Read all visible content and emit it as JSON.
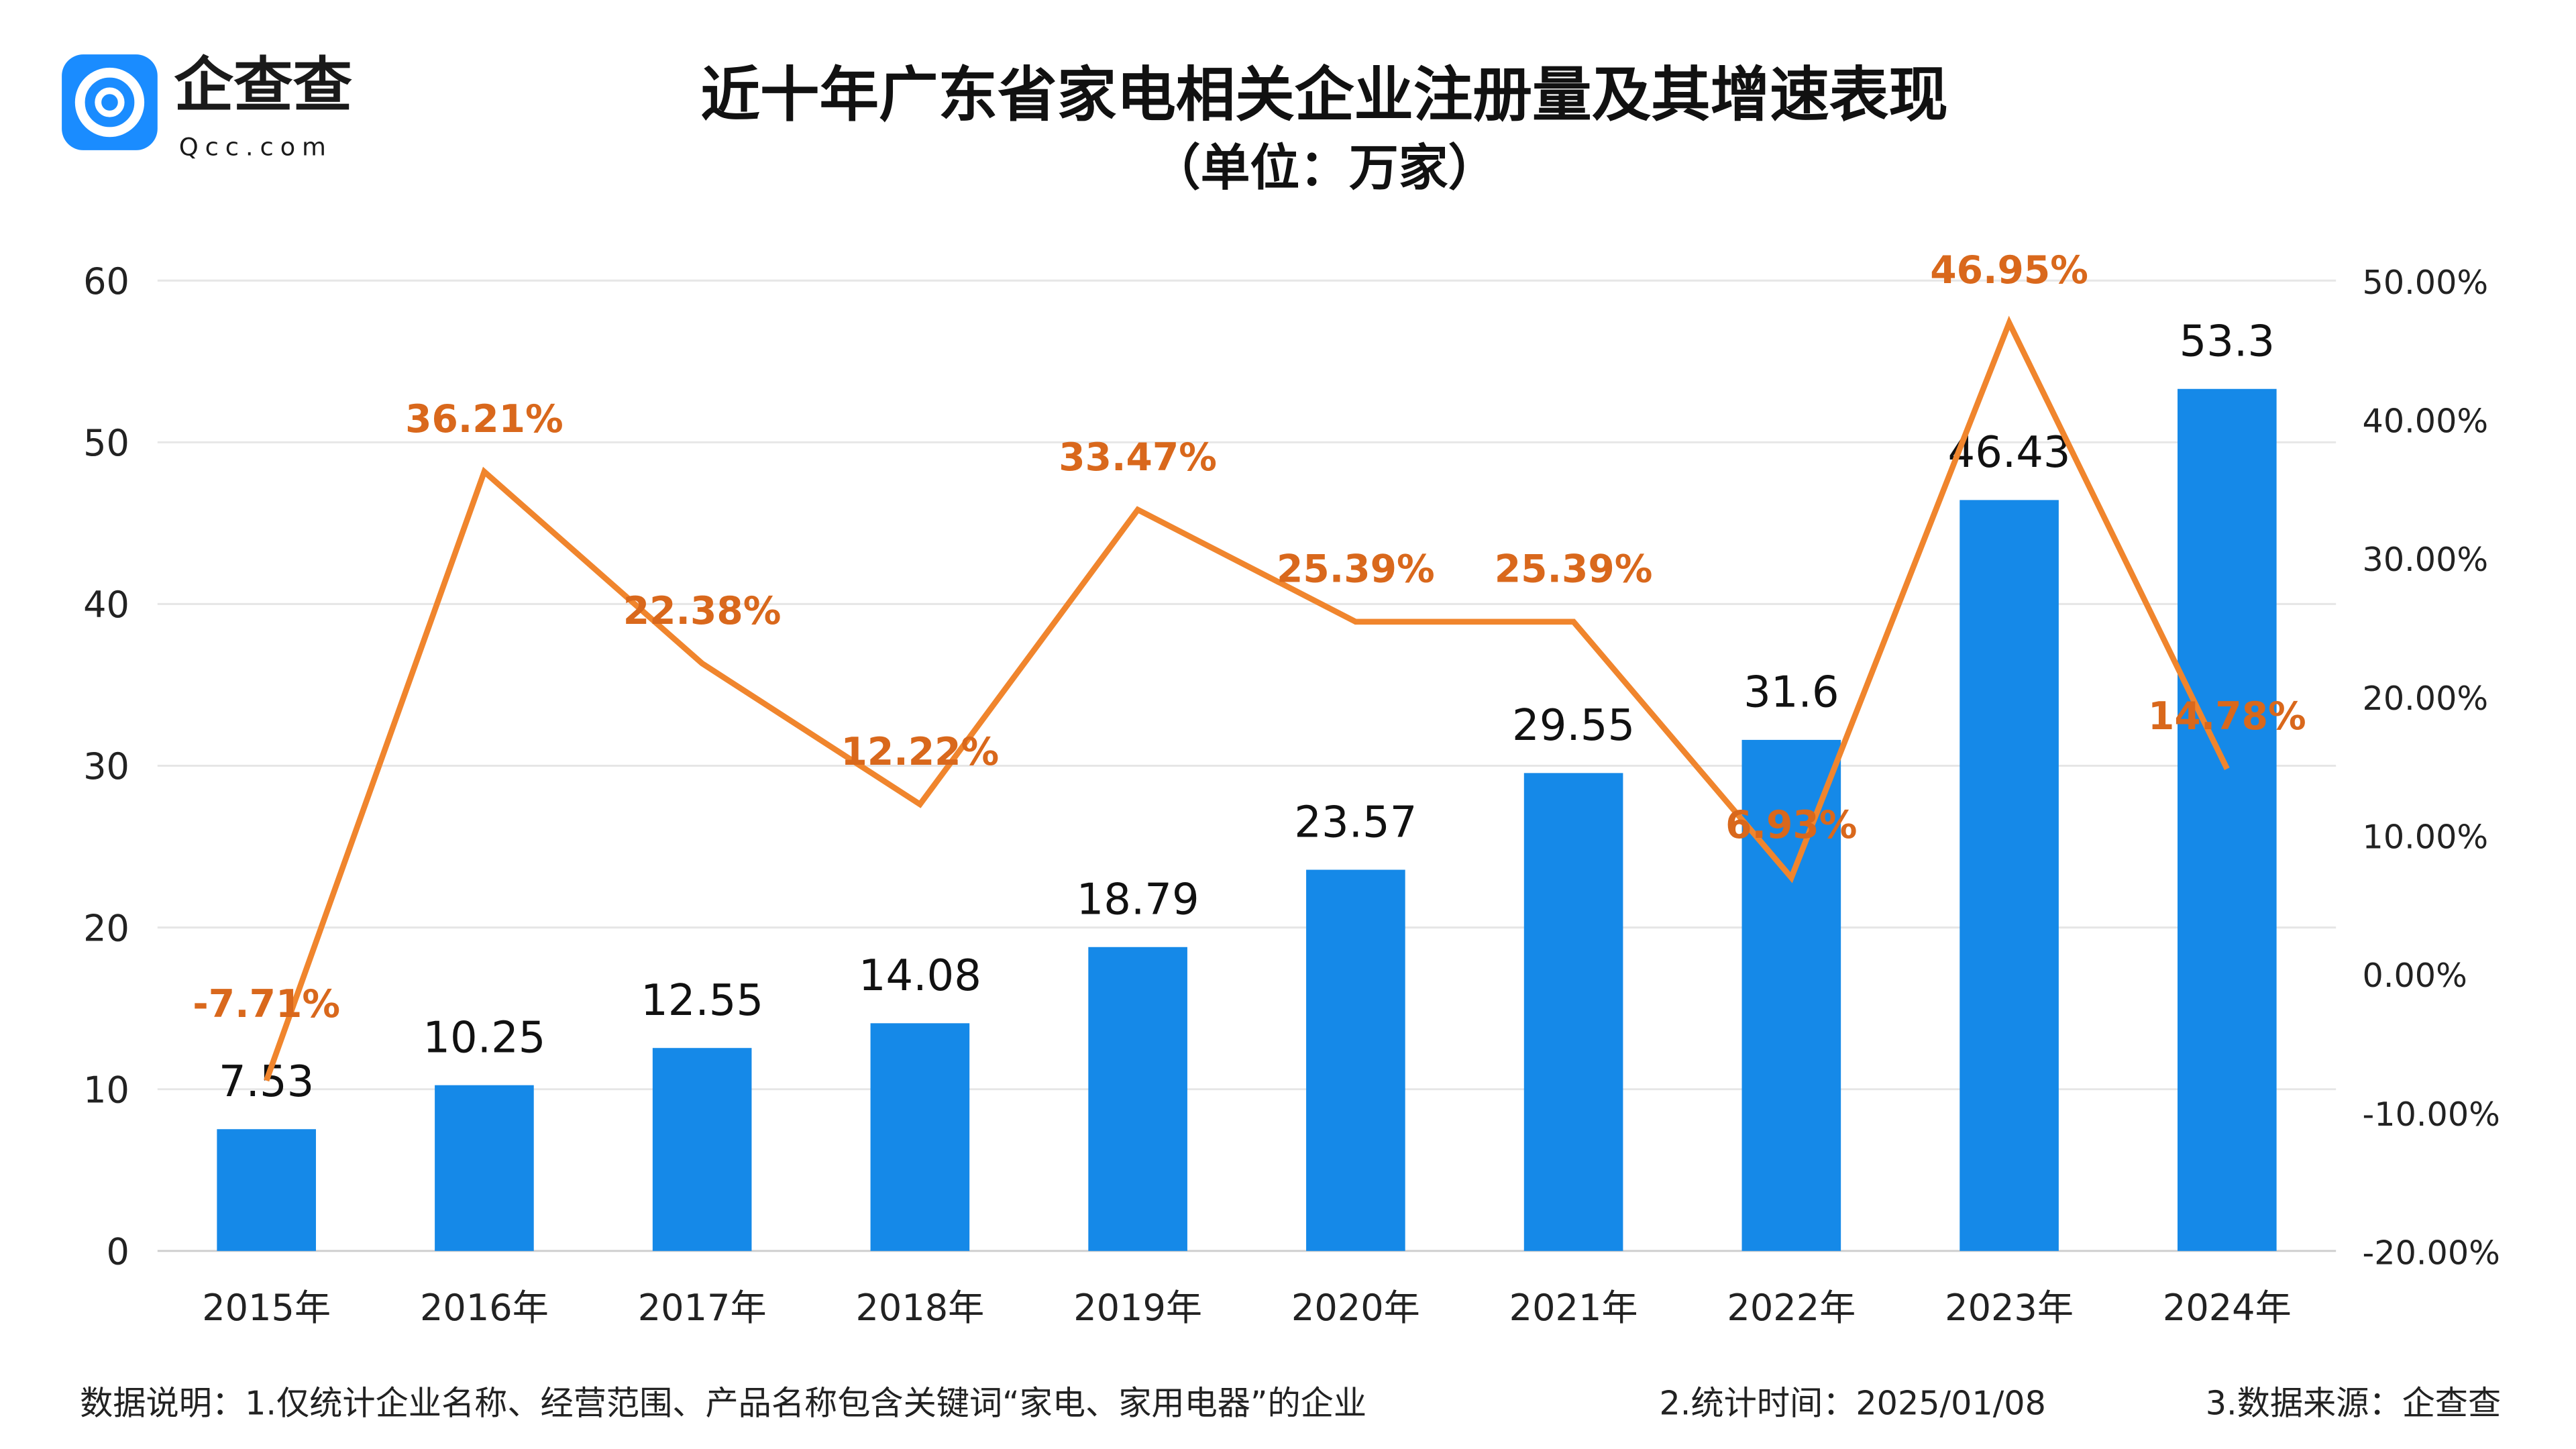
{
  "logo": {
    "name": "企查查",
    "domain": "Qcc.com",
    "color": "#1a8cff"
  },
  "chart_data": {
    "type": "bar+line",
    "title": "近十年广东省家电相关企业注册量及其增速表现",
    "subtitle": "（单位：万家）",
    "categories": [
      "2015年",
      "2016年",
      "2017年",
      "2018年",
      "2019年",
      "2020年",
      "2021年",
      "2022年",
      "2023年",
      "2024年"
    ],
    "series": [
      {
        "type": "bar",
        "axis": "left",
        "values": [
          7.53,
          10.25,
          12.55,
          14.08,
          18.79,
          23.57,
          29.55,
          31.6,
          46.43,
          53.3
        ],
        "labels": [
          "7.53",
          "10.25",
          "12.55",
          "14.08",
          "18.79",
          "23.57",
          "29.55",
          "31.6",
          "46.43",
          "53.3"
        ],
        "color": "#1589e8"
      },
      {
        "type": "line",
        "axis": "right",
        "values": [
          -7.71,
          36.21,
          22.38,
          12.22,
          33.47,
          25.39,
          25.39,
          6.93,
          46.95,
          14.78
        ],
        "labels": [
          "-7.71%",
          "36.21%",
          "22.38%",
          "12.22%",
          "33.47%",
          "25.39%",
          "25.39%",
          "6.93%",
          "46.95%",
          "14.78%"
        ],
        "color": "#f0852d",
        "label_color": "#d9681c"
      }
    ],
    "left_axis": {
      "ylim": [
        0,
        60
      ],
      "ticks": [
        "0",
        "10",
        "20",
        "30",
        "40",
        "50",
        "60"
      ]
    },
    "right_axis": {
      "ylim": [
        -20,
        50
      ],
      "ticks": [
        "-20.00%",
        "-10.00%",
        "0.00%",
        "10.00%",
        "20.00%",
        "30.00%",
        "40.00%",
        "50.00%"
      ]
    },
    "grid": true
  },
  "footer": {
    "note1": "数据说明：1.仅统计企业名称、经营范围、产品名称包含关键词“家电、家用电器”的企业",
    "note2": "2.统计时间：2025/01/08",
    "note3": "3.数据来源：企查查"
  }
}
